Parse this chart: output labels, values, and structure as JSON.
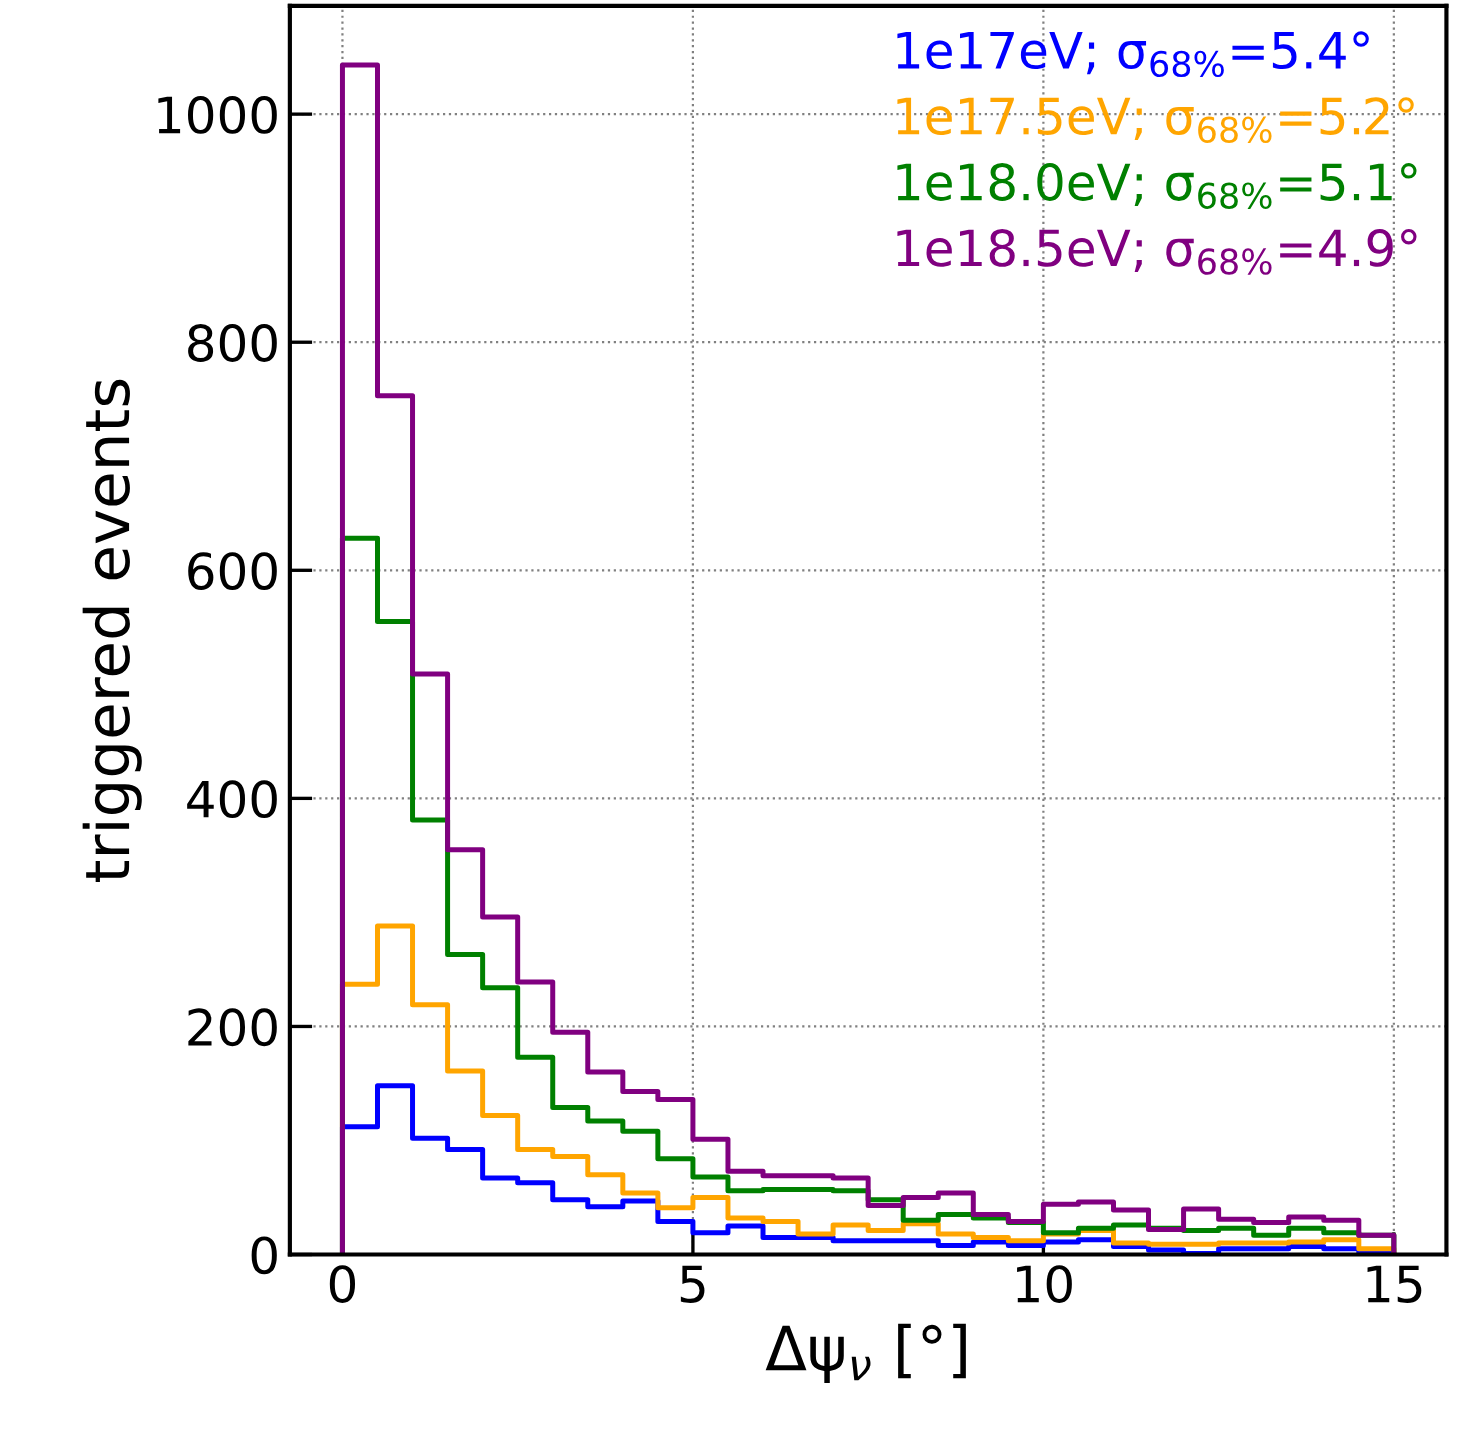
{
  "chart_data": {
    "type": "histogram",
    "xlabel": "Δψ$_{ν}$ [°]",
    "ylabel": "triggered events",
    "bins": [
      0,
      0.5,
      1,
      1.5,
      2,
      2.5,
      3,
      3.5,
      4,
      4.5,
      5,
      5.5,
      6,
      6.5,
      7,
      7.5,
      8,
      8.5,
      9,
      9.5,
      10,
      10.5,
      11,
      11.5,
      12,
      12.5,
      13,
      13.5,
      14,
      14.5,
      15
    ],
    "series": [
      {
        "name": "1e17eV; σ$_{68%}$=5.4°",
        "color": "#0000ff",
        "values": [
          112,
          148,
          102,
          92,
          67,
          63,
          48,
          42,
          47,
          29,
          19,
          25,
          15,
          15,
          12,
          12,
          12,
          8,
          11,
          8,
          11,
          13,
          7,
          4,
          1,
          5,
          5,
          7,
          5,
          1
        ]
      },
      {
        "name": "1e17.5eV; σ$_{68%}$=5.2°",
        "color": "#ffa500",
        "values": [
          237,
          288,
          219,
          161,
          122,
          92,
          86,
          70,
          54,
          41,
          50,
          32,
          29,
          18,
          26,
          21,
          27,
          18,
          15,
          12,
          18,
          21,
          10,
          9,
          9,
          10,
          10,
          11,
          13,
          5
        ]
      },
      {
        "name": "1e18.0eV; σ$_{68%}$=5.1°",
        "color": "#008000",
        "values": [
          628,
          555,
          381,
          263,
          234,
          173,
          129,
          117,
          108,
          84,
          68,
          56,
          57,
          57,
          56,
          48,
          30,
          35,
          32,
          28,
          19,
          23,
          26,
          23,
          21,
          23,
          17,
          23,
          19,
          17
        ]
      },
      {
        "name": "1e18.5eV; σ$_{68%}$=4.9°",
        "color": "#800080",
        "values": [
          1043,
          753,
          509,
          355,
          296,
          239,
          195,
          160,
          143,
          136,
          101,
          73,
          69,
          69,
          67,
          43,
          50,
          54,
          35,
          29,
          44,
          46,
          39,
          22,
          40,
          31,
          28,
          33,
          30,
          17
        ]
      }
    ],
    "xlim": [
      -0.75,
      15.75
    ],
    "ylim": [
      0,
      1095
    ],
    "xticks": [
      0,
      5,
      10,
      15
    ],
    "yticks": [
      0,
      200,
      400,
      600,
      800,
      1000
    ],
    "grid": true,
    "legend": "top right"
  }
}
